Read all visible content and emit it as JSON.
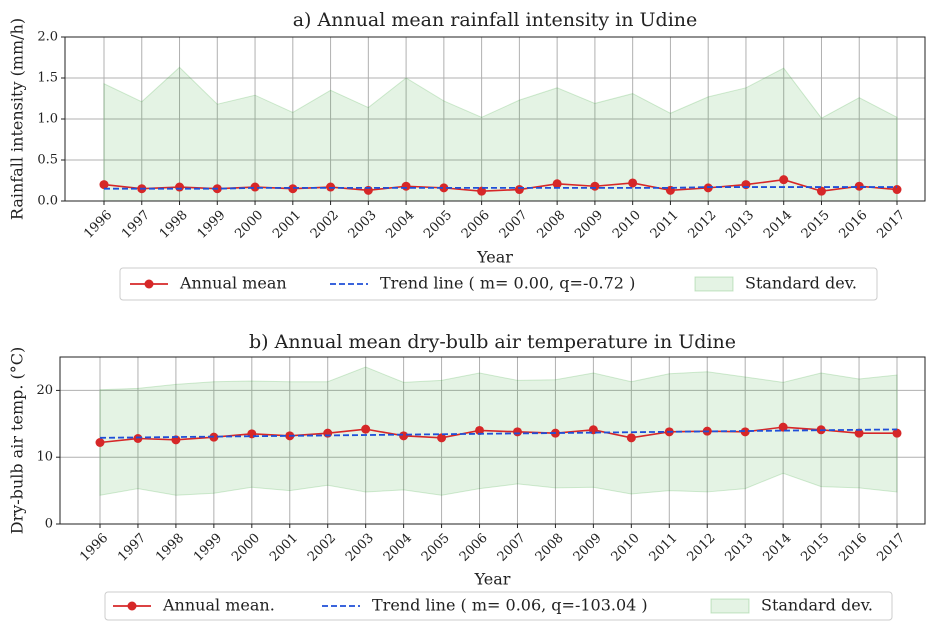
{
  "chart_data": [
    {
      "type": "line",
      "title": "a) Annual mean rainfall intensity in Udine",
      "xlabel": "Year",
      "ylabel": "Rainfall intensity (mm/h)",
      "categories": [
        "1996",
        "1997",
        "1998",
        "1999",
        "2000",
        "2001",
        "2002",
        "2003",
        "2004",
        "2005",
        "2006",
        "2007",
        "2008",
        "2009",
        "2010",
        "2011",
        "2012",
        "2013",
        "2014",
        "2015",
        "2016",
        "2017"
      ],
      "ylim": [
        0,
        2
      ],
      "yticks": [
        {
          "value": 0,
          "label": "0.0"
        },
        {
          "value": 0.5,
          "label": "0.5"
        },
        {
          "value": 1,
          "label": "1.0"
        },
        {
          "value": 1.5,
          "label": "1.5"
        },
        {
          "value": 2,
          "label": "2.0"
        }
      ],
      "grid": true,
      "legend": "lower center",
      "series": [
        {
          "name": "Annual mean",
          "color": "#d62728",
          "marker": "o",
          "linestyle": "solid",
          "values": [
            0.2,
            0.15,
            0.17,
            0.15,
            0.17,
            0.15,
            0.17,
            0.13,
            0.18,
            0.16,
            0.12,
            0.14,
            0.21,
            0.18,
            0.22,
            0.13,
            0.16,
            0.2,
            0.26,
            0.12,
            0.18,
            0.14
          ]
        },
        {
          "name": "Trend line ( m= 0.00, q=-0.72 )",
          "color": "#1f4fd8",
          "linestyle": "dashed",
          "values": [
            0.15,
            0.15,
            0.15,
            0.15,
            0.16,
            0.16,
            0.16,
            0.16,
            0.16,
            0.16,
            0.16,
            0.16,
            0.16,
            0.16,
            0.16,
            0.16,
            0.17,
            0.17,
            0.17,
            0.17,
            0.17,
            0.17
          ]
        },
        {
          "name": "Standard dev.",
          "color": "#2ca02c",
          "kind": "fill_between",
          "values": [
            1.43,
            1.21,
            1.63,
            1.18,
            1.29,
            1.08,
            1.35,
            1.14,
            1.5,
            1.22,
            1.02,
            1.23,
            1.38,
            1.19,
            1.31,
            1.07,
            1.27,
            1.38,
            1.62,
            1.01,
            1.26,
            1.02
          ],
          "lower": [
            0,
            0,
            0,
            0,
            0,
            0,
            0,
            0,
            0,
            0,
            0,
            0,
            0,
            0,
            0,
            0,
            0,
            0,
            0,
            0,
            0,
            0
          ]
        }
      ]
    },
    {
      "type": "line",
      "title": "b) Annual mean dry-bulb air temperature in Udine",
      "xlabel": "Year",
      "ylabel": "Dry-bulb air temp. (°C)",
      "categories": [
        "1996",
        "1997",
        "1998",
        "1999",
        "2000",
        "2001",
        "2002",
        "2003",
        "2004",
        "2005",
        "2006",
        "2007",
        "2008",
        "2009",
        "2010",
        "2011",
        "2012",
        "2013",
        "2014",
        "2015",
        "2016",
        "2017"
      ],
      "ylim": [
        0,
        25
      ],
      "yticks": [
        0,
        10,
        20
      ],
      "grid": true,
      "legend": "lower center",
      "series": [
        {
          "name": "Annual mean.",
          "color": "#d62728",
          "marker": "o",
          "linestyle": "solid",
          "values": [
            12.2,
            12.8,
            12.6,
            13.0,
            13.5,
            13.2,
            13.6,
            14.2,
            13.2,
            12.9,
            14.0,
            13.8,
            13.6,
            14.1,
            12.9,
            13.8,
            13.9,
            13.8,
            14.5,
            14.1,
            13.6,
            13.6
          ]
        },
        {
          "name": "Trend line ( m= 0.06, q=-103.04 )",
          "color": "#1f4fd8",
          "linestyle": "dashed",
          "values": [
            12.9,
            12.96,
            13.02,
            13.08,
            13.14,
            13.2,
            13.26,
            13.32,
            13.38,
            13.44,
            13.5,
            13.56,
            13.62,
            13.68,
            13.74,
            13.8,
            13.86,
            13.92,
            13.98,
            14.04,
            14.1,
            14.16
          ]
        },
        {
          "name": "Standard dev.",
          "color": "#2ca02c",
          "kind": "fill_between",
          "values": [
            20.1,
            20.3,
            20.9,
            21.3,
            21.4,
            21.3,
            21.3,
            23.5,
            21.2,
            21.5,
            22.6,
            21.5,
            21.6,
            22.6,
            21.3,
            22.5,
            22.8,
            22.0,
            21.2,
            22.6,
            21.7,
            22.3
          ],
          "lower": [
            4.3,
            5.3,
            4.3,
            4.6,
            5.5,
            5.0,
            5.8,
            4.8,
            5.1,
            4.3,
            5.3,
            6.0,
            5.4,
            5.5,
            4.5,
            5.0,
            4.8,
            5.3,
            7.6,
            5.6,
            5.4,
            4.8
          ]
        }
      ]
    }
  ]
}
